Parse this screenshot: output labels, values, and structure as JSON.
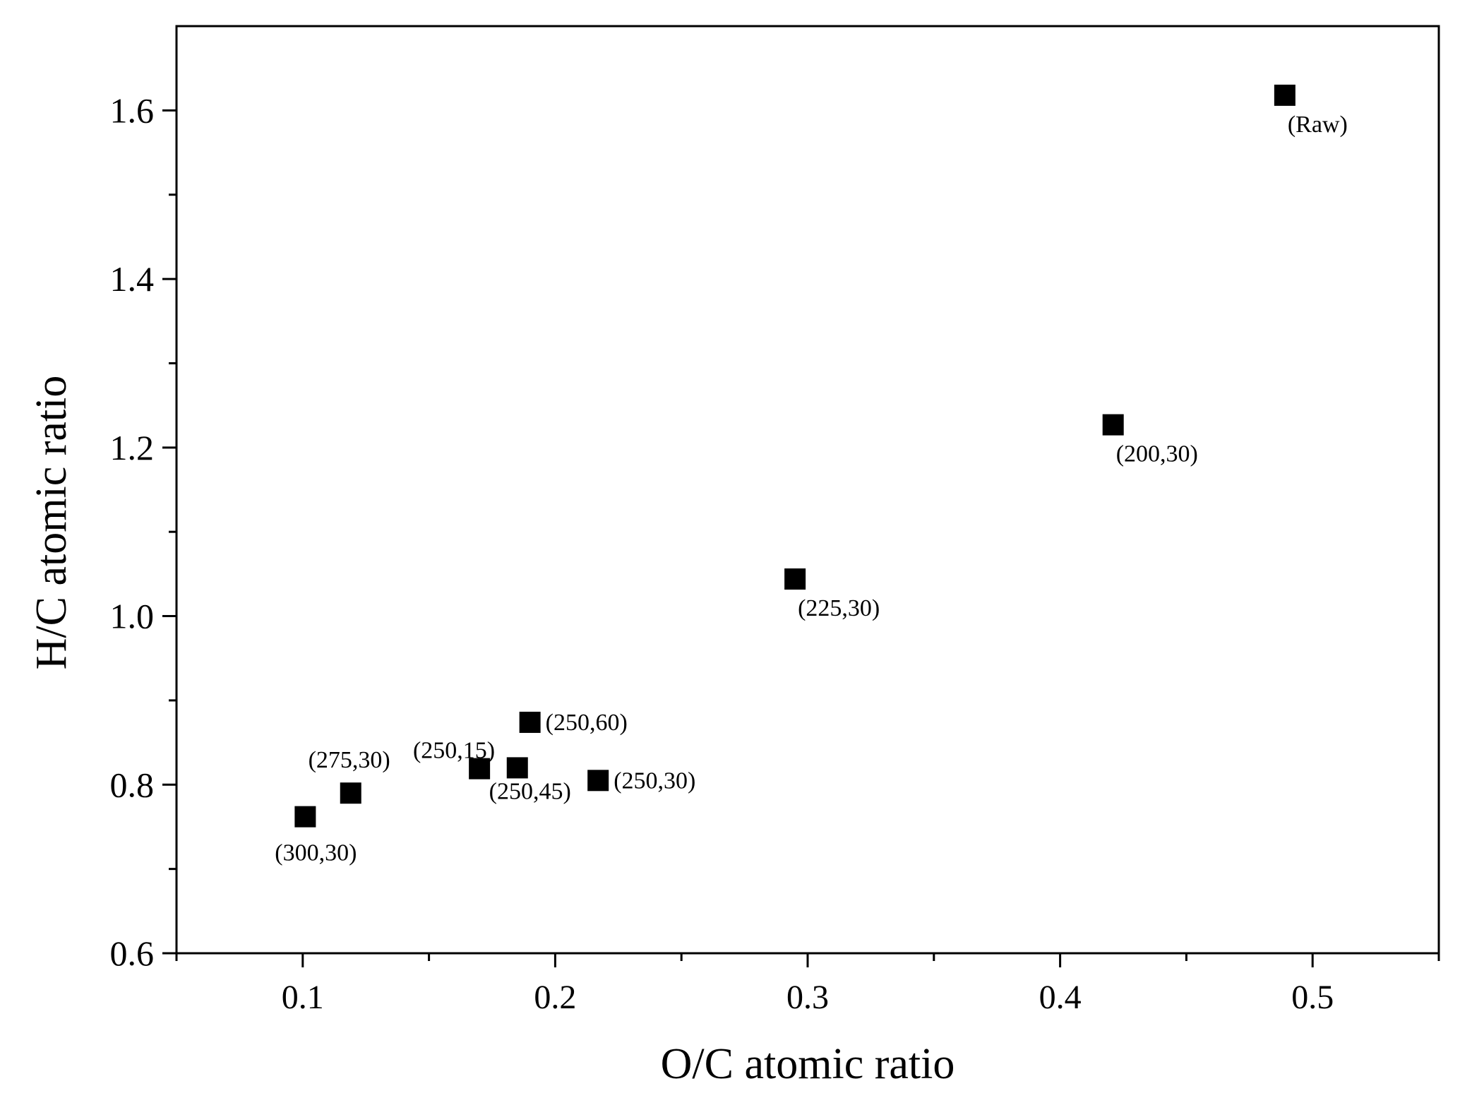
{
  "chart_data": {
    "type": "scatter",
    "title": "",
    "xlabel": "O/C atomic ratio",
    "ylabel": "H/C atomic ratio",
    "xlim": [
      0.05,
      0.55
    ],
    "ylim": [
      0.6,
      1.7
    ],
    "x_ticks": [
      0.1,
      0.2,
      0.3,
      0.4,
      0.5
    ],
    "x_tick_labels": [
      "0.1",
      "0.2",
      "0.3",
      "0.4",
      "0.5"
    ],
    "x_minor_ticks": [
      0.05,
      0.15,
      0.25,
      0.35,
      0.45,
      0.55
    ],
    "y_ticks": [
      0.6,
      0.8,
      1.0,
      1.2,
      1.4,
      1.6
    ],
    "y_tick_labels": [
      "0.6",
      "0.8",
      "1.0",
      "1.2",
      "1.4",
      "1.6"
    ],
    "y_minor_ticks": [
      0.7,
      0.9,
      1.1,
      1.3,
      1.5
    ],
    "grid": false,
    "marker": "square",
    "marker_color": "#000000",
    "points": [
      {
        "x": 0.101,
        "y": 0.762,
        "label": "(300,30)",
        "label_pos": "below"
      },
      {
        "x": 0.119,
        "y": 0.79,
        "label": "(275,30)",
        "label_pos": "above-left"
      },
      {
        "x": 0.17,
        "y": 0.819,
        "label": "(250,15)",
        "label_pos": "above-left"
      },
      {
        "x": 0.185,
        "y": 0.82,
        "label": "(250,45)",
        "label_pos": "below"
      },
      {
        "x": 0.19,
        "y": 0.874,
        "label": "(250,60)",
        "label_pos": "right"
      },
      {
        "x": 0.217,
        "y": 0.805,
        "label": "(250,30)",
        "label_pos": "right"
      },
      {
        "x": 0.295,
        "y": 1.044,
        "label": "(225,30)",
        "label_pos": "below-right"
      },
      {
        "x": 0.421,
        "y": 1.227,
        "label": "(200,30)",
        "label_pos": "below-right"
      },
      {
        "x": 0.489,
        "y": 1.618,
        "label": "(Raw)",
        "label_pos": "below-right"
      }
    ]
  }
}
